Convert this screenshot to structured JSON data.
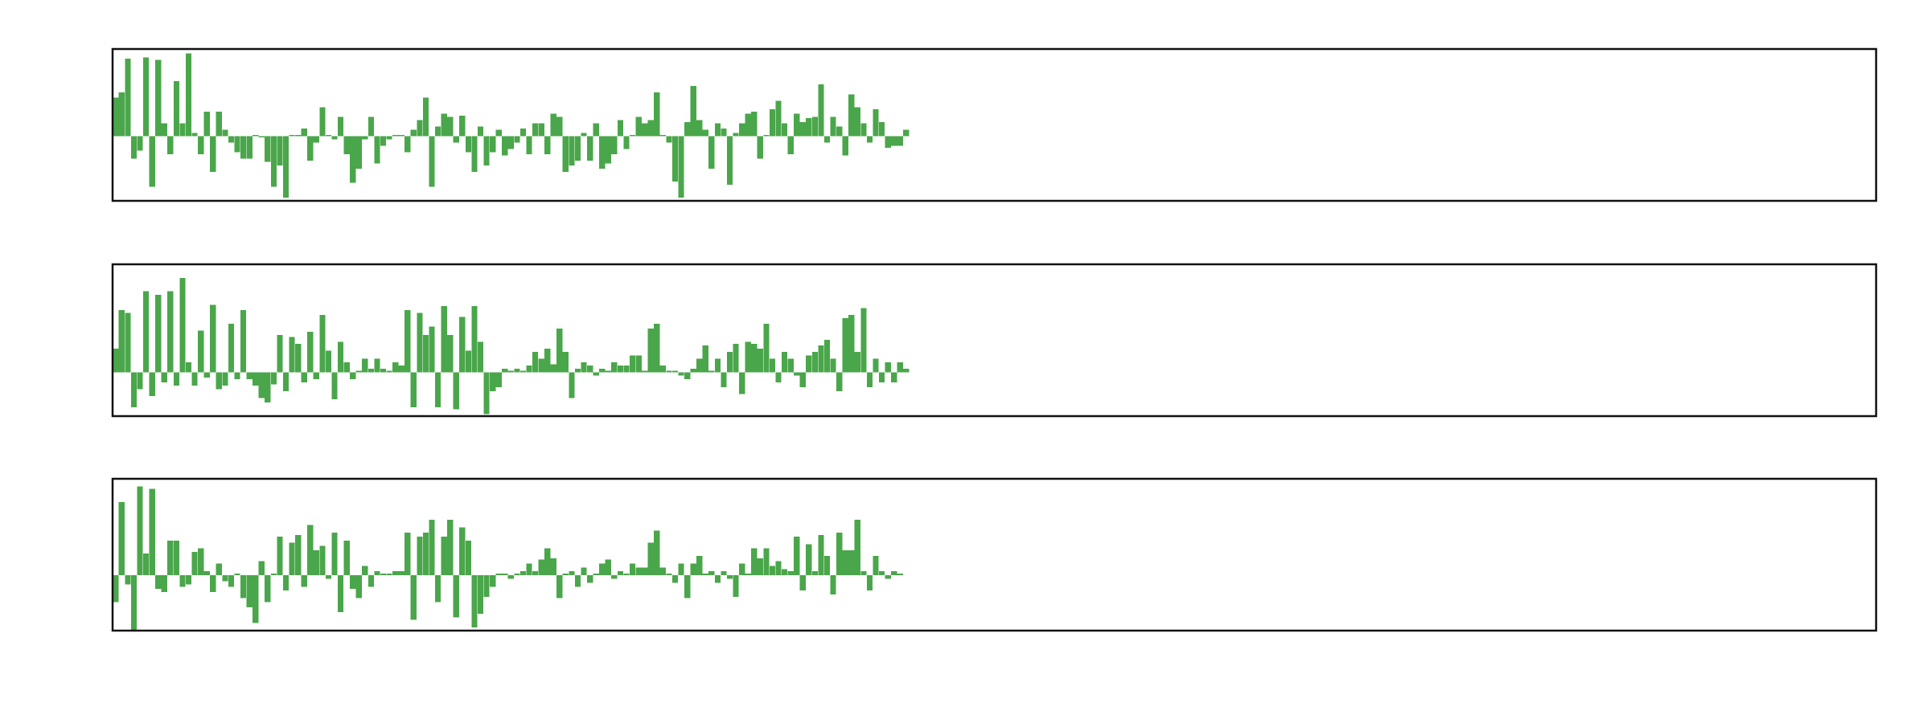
{
  "colors": {
    "bar": "#4aa64a",
    "frame": "#111111",
    "background": "#ffffff"
  },
  "chart_data": [
    {
      "type": "bar",
      "xlim": [
        0,
        290
      ],
      "ylim": [
        -1.0,
        1.35
      ],
      "grid": false,
      "legend": "none",
      "series": [
        {
          "values": [
            0.6,
            0.68,
            1.2,
            -0.35,
            -0.22,
            1.22,
            -0.78,
            1.18,
            0.2,
            -0.28,
            0.85,
            0.2,
            1.28,
            0.05,
            -0.28,
            0.38,
            -0.55,
            0.38,
            0.1,
            -0.1,
            -0.25,
            -0.35,
            -0.35,
            0.02,
            -0.02,
            -0.4,
            -0.78,
            -0.45,
            -0.95,
            0.02,
            0.02,
            0.12,
            -0.38,
            -0.1,
            0.45,
            0.02,
            -0.05,
            0.3,
            -0.28,
            -0.72,
            -0.5,
            -0.05,
            0.3,
            -0.42,
            -0.15,
            -0.05,
            0.02,
            0.02,
            -0.25,
            0.1,
            0.25,
            0.6,
            -0.78,
            0.15,
            0.35,
            0.3,
            -0.1,
            0.32,
            -0.25,
            -0.55,
            0.15,
            -0.45,
            -0.25,
            0.1,
            -0.3,
            -0.2,
            -0.1,
            0.12,
            -0.28,
            0.2,
            0.2,
            -0.28,
            0.35,
            0.3,
            -0.55,
            -0.45,
            -0.38,
            0.05,
            -0.38,
            0.2,
            -0.5,
            -0.42,
            -0.28,
            0.25,
            -0.2,
            0.02,
            0.3,
            0.2,
            0.25,
            0.68,
            0.02,
            -0.1,
            -0.7,
            -0.95,
            0.22,
            0.78,
            0.25,
            0.1,
            -0.5,
            0.2,
            0.12,
            -0.75,
            0.05,
            0.2,
            0.35,
            0.38,
            -0.35,
            0.02,
            0.42,
            0.55,
            0.2,
            -0.28,
            0.35,
            0.22,
            0.28,
            0.3,
            0.8,
            -0.1,
            0.3,
            0.15,
            -0.3,
            0.65,
            0.45,
            0.2,
            -0.1,
            0.42,
            0.22,
            -0.18,
            -0.15,
            -0.15,
            0.1
          ]
        }
      ]
    },
    {
      "type": "bar",
      "xlim": [
        0,
        290
      ],
      "ylim": [
        -0.65,
        1.6
      ],
      "grid": false,
      "legend": "none",
      "series": [
        {
          "values": [
            0.35,
            0.92,
            0.88,
            -0.52,
            -0.25,
            1.2,
            -0.35,
            1.15,
            -0.15,
            1.2,
            -0.2,
            1.4,
            0.15,
            -0.2,
            0.62,
            -0.08,
            1.0,
            -0.25,
            -0.2,
            0.72,
            -0.1,
            0.92,
            -0.1,
            -0.2,
            -0.38,
            -0.45,
            -0.18,
            0.55,
            -0.28,
            0.52,
            0.42,
            -0.15,
            0.6,
            -0.1,
            0.85,
            0.32,
            -0.4,
            0.45,
            0.15,
            -0.1,
            0.02,
            0.2,
            0.05,
            0.2,
            0.05,
            0.02,
            0.15,
            0.1,
            0.92,
            -0.52,
            0.88,
            0.55,
            0.68,
            -0.52,
            0.98,
            0.55,
            -0.55,
            0.82,
            0.32,
            0.98,
            0.45,
            -0.62,
            -0.28,
            -0.22,
            0.05,
            0.02,
            0.05,
            0.02,
            0.1,
            0.3,
            0.2,
            0.35,
            0.12,
            0.65,
            0.3,
            -0.38,
            0.05,
            0.15,
            0.1,
            -0.05,
            0.05,
            0.02,
            0.15,
            0.1,
            0.1,
            0.25,
            0.25,
            0.02,
            0.65,
            0.72,
            0.1,
            0.02,
            0.02,
            -0.05,
            -0.1,
            0.05,
            0.2,
            0.4,
            0.02,
            0.2,
            -0.22,
            0.3,
            0.42,
            -0.32,
            0.45,
            0.42,
            0.35,
            0.72,
            0.2,
            -0.15,
            0.3,
            0.2,
            -0.05,
            -0.22,
            0.25,
            0.3,
            0.4,
            0.48,
            0.2,
            -0.28,
            0.8,
            0.85,
            0.3,
            0.95,
            -0.22,
            0.2,
            -0.15,
            0.15,
            -0.15,
            0.15,
            0.05
          ]
        }
      ]
    },
    {
      "type": "bar",
      "xlim": [
        0,
        290
      ],
      "ylim": [
        -0.72,
        1.25
      ],
      "grid": false,
      "legend": "none",
      "series": [
        {
          "values": [
            -0.35,
            0.95,
            -0.12,
            -0.72,
            1.15,
            0.28,
            1.12,
            -0.18,
            -0.22,
            0.45,
            0.45,
            -0.15,
            -0.12,
            0.3,
            0.35,
            0.05,
            -0.22,
            0.15,
            -0.08,
            -0.15,
            0.02,
            -0.3,
            -0.42,
            -0.62,
            0.18,
            -0.35,
            0.02,
            0.5,
            -0.2,
            0.42,
            0.52,
            -0.15,
            0.65,
            0.32,
            0.38,
            -0.05,
            0.55,
            -0.48,
            0.45,
            -0.18,
            -0.3,
            0.12,
            -0.15,
            0.05,
            0.02,
            0.02,
            0.05,
            0.05,
            0.55,
            -0.58,
            0.5,
            0.55,
            0.72,
            -0.35,
            0.5,
            0.72,
            -0.55,
            0.62,
            0.45,
            -0.68,
            -0.5,
            -0.28,
            -0.15,
            0.02,
            0.02,
            -0.05,
            0.02,
            0.05,
            0.15,
            0.05,
            0.2,
            0.35,
            0.22,
            -0.3,
            0.02,
            0.05,
            -0.15,
            0.1,
            -0.1,
            0.02,
            0.15,
            0.2,
            -0.05,
            0.05,
            0.02,
            0.15,
            0.1,
            0.1,
            0.42,
            0.58,
            0.1,
            0.02,
            -0.1,
            0.15,
            -0.3,
            0.15,
            0.25,
            0.02,
            0.05,
            -0.1,
            0.05,
            -0.05,
            -0.28,
            0.15,
            0.02,
            0.35,
            0.22,
            0.35,
            0.12,
            0.18,
            0.08,
            0.05,
            0.5,
            -0.2,
            0.4,
            0.05,
            0.52,
            0.25,
            -0.25,
            0.55,
            0.32,
            0.32,
            0.72,
            0.05,
            -0.2,
            0.25,
            0.05,
            -0.05,
            0.05,
            0.02
          ]
        }
      ]
    }
  ]
}
